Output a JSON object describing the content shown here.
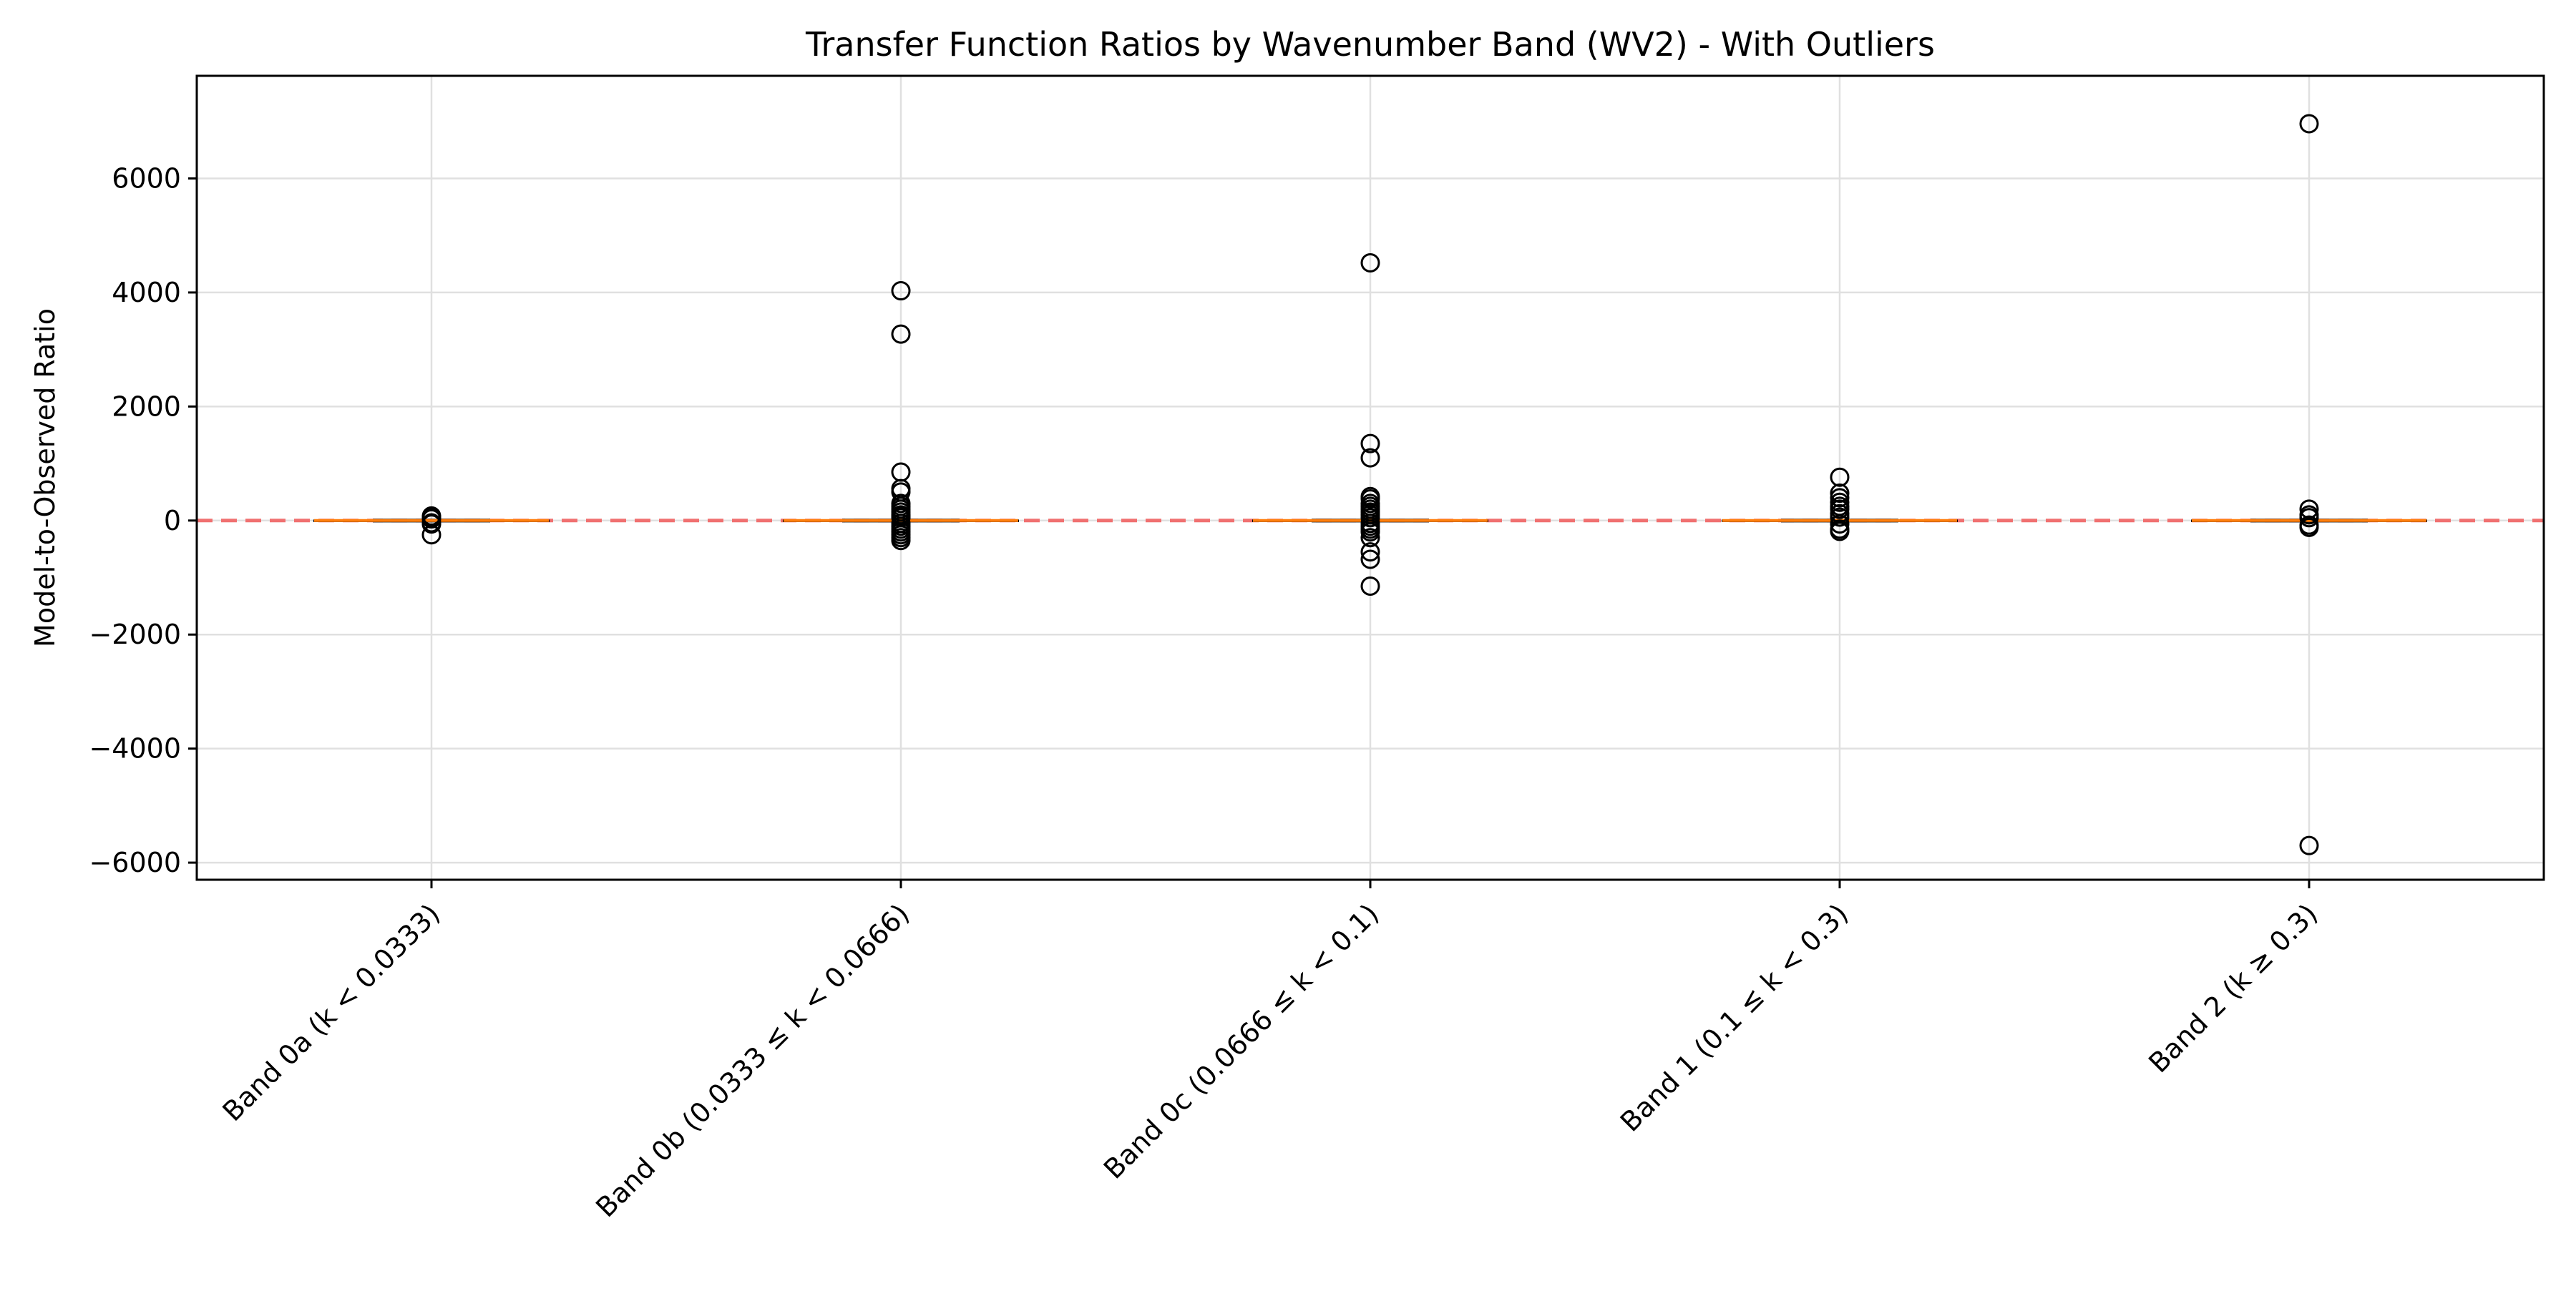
{
  "chart_data": {
    "type": "box",
    "title": "Transfer Function Ratios by Wavenumber Band (WV2) - With Outliers",
    "xlabel": "",
    "ylabel": "Model-to-Observed Ratio",
    "ylim": [
      -6300,
      7800
    ],
    "yticks": [
      -6000,
      -4000,
      -2000,
      0,
      2000,
      4000,
      6000
    ],
    "ytick_labels": [
      "−6000",
      "−4000",
      "−2000",
      "0",
      "2000",
      "4000",
      "6000"
    ],
    "grid": true,
    "reference_line": {
      "y": 0,
      "color": "#f07070",
      "style": "dashed"
    },
    "categories": [
      "Band 0a (k < 0.0333)",
      "Band 0b (0.0333 ≤ k < 0.0666)",
      "Band 0c (0.0666 ≤ k < 0.1)",
      "Band 1 (0.1 ≤ k < 0.3)",
      "Band 2 (k ≥ 0.3)"
    ],
    "series": [
      {
        "median": 0,
        "q1": -5,
        "q3": 5,
        "whisker_low": -20,
        "whisker_high": 20,
        "outliers": [
          -250,
          80,
          50,
          30,
          -40,
          -60,
          60
        ]
      },
      {
        "median": 0,
        "q1": -5,
        "q3": 5,
        "whisker_low": -20,
        "whisker_high": 20,
        "outliers": [
          4030,
          3270,
          850,
          560,
          500,
          300,
          250,
          200,
          150,
          100,
          80,
          50,
          -50,
          -100,
          -150,
          -200,
          -250,
          -300,
          -350
        ]
      },
      {
        "median": 0,
        "q1": -5,
        "q3": 5,
        "whisker_low": -20,
        "whisker_high": 20,
        "outliers": [
          4520,
          1350,
          1100,
          420,
          380,
          300,
          250,
          200,
          150,
          100,
          50,
          -50,
          -100,
          -150,
          -200,
          -300,
          -550,
          -680,
          -1150
        ]
      },
      {
        "median": 0,
        "q1": -5,
        "q3": 5,
        "whisker_low": -20,
        "whisker_high": 20,
        "outliers": [
          760,
          480,
          400,
          320,
          250,
          200,
          120,
          60,
          -60,
          -150,
          -190
        ]
      },
      {
        "median": 0,
        "q1": -5,
        "q3": 5,
        "whisker_low": -20,
        "whisker_high": 20,
        "outliers": [
          6960,
          200,
          100,
          50,
          -80,
          -120,
          -5700
        ]
      }
    ],
    "colors": {
      "median": "#ff7f0e",
      "outlier_edge": "#000000",
      "grid": "#e0e0e0",
      "reference": "#f07070"
    }
  }
}
